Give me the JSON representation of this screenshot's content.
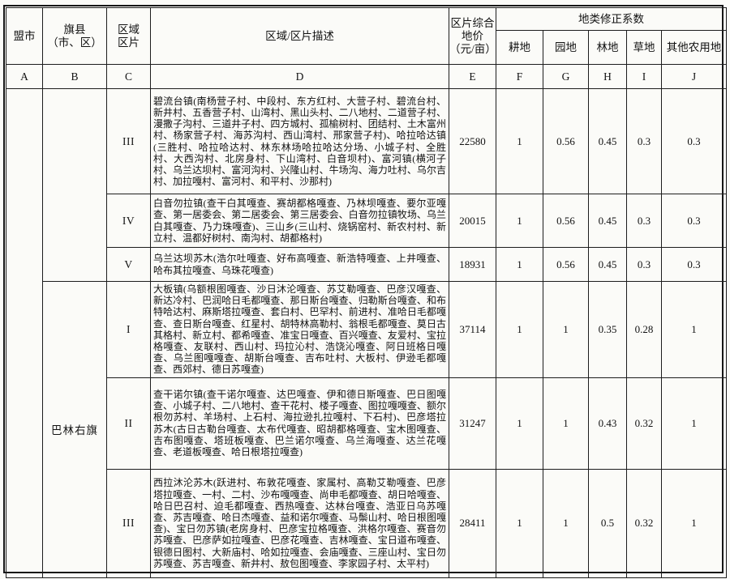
{
  "header": {
    "league": "盟市",
    "banner": [
      "旗县",
      "（市、区）"
    ],
    "zone": [
      "区域",
      "区片"
    ],
    "desc": "区域/区片描述",
    "price": [
      "区片综合",
      "地价",
      "（元/亩）"
    ],
    "coef_group": "地类修正系数",
    "coef_farmland": "耕地",
    "coef_garden": "园地",
    "coef_forest": "林地",
    "coef_grass": "草地",
    "coef_other": "其他农用地",
    "letters": {
      "a": "A",
      "b": "B",
      "c": "C",
      "d": "D",
      "e": "E",
      "f": "F",
      "g": "G",
      "h": "H",
      "i": "I",
      "j": "J"
    }
  },
  "body": {
    "league": "",
    "banner_group1": "",
    "banner_group2": "巴林右旗",
    "rows": [
      {
        "zone": "III",
        "desc": "碧流台镇(南杨营子村、中段村、东方红村、大营子村、碧流台村、新井村、五香营子村、山湾村、黑山头村、二八地村、二道营子村、漫撒子沟村、三道井子村、四方城村、孤榆树村、团结村、土木富州村、杨家营子村、海苏沟村、西山湾村、邢家营子村)、哈拉哈达镇(三胜村、哈拉哈达村、林东林场哈拉哈达分场、小城子村、全胜村、大西沟村、北房身村、下山湾村、白音坝村)、富河镇(横河子村、乌兰达坝村、富河沟村、兴隆山村、牛场沟、海力吐村、乌尔吉村、加拉嘎村、富河村、和平村、沙那村)",
        "price": "22580",
        "f": "1",
        "g": "0.56",
        "h": "0.45",
        "i": "0.3",
        "j": "0.3"
      },
      {
        "zone": "IV",
        "desc": "白音勿拉镇(查干白其嘎查、赛胡都格嘎查、乃林坝嘎查、要尔亚嘎查、第一居委会、第二居委会、第三居委会、白音勿拉镇牧场、乌兰白其嘎查、乃力珠嘎查)、三山乡(三山村、烧锅窑村、新农村村、新立村、温都好树村、南沟村、胡都格村)",
        "price": "20015",
        "f": "1",
        "g": "0.56",
        "h": "0.45",
        "i": "0.3",
        "j": "0.3"
      },
      {
        "zone": "V",
        "desc": "乌兰达坝苏木(浩尔吐嘎查、好布高嘎查、新浩特嘎查、上井嘎查、哈布其拉嘎查、乌珠花嘎查)",
        "price": "18931",
        "f": "1",
        "g": "0.56",
        "h": "0.45",
        "i": "0.3",
        "j": "0.3"
      },
      {
        "zone": "I",
        "desc": "大板镇(乌额根图嘎查、沙日沐沦嘎查、苏艾勒嘎查、巴彦汉嘎查、新达冷村、巴润哈日毛都嘎查、那日斯台嘎查、归勒斯台嘎查、和布特哈达村、麻斯塔拉嘎查、套白村、巴罕村、前进村、准哈日毛都嘎查、查日斯台嘎查、红星村、胡特林高勒村、翁根毛都嘎查、莫日古其格村、新立村、都希嘎查、准宝日嘎查、百兴嘎查、友爱村、宝拉格嘎查、友联村、西山村、玛拉沁村、浩饶沁嘎查、阿日班格日嘎查、乌兰图嘎嘎查、胡斯台嘎查、吉布吐村、大板村、伊逊毛都嘎查、西郊村、德日苏嘎查)",
        "price": "37114",
        "f": "1",
        "g": "1",
        "h": "0.35",
        "i": "0.28",
        "j": "1"
      },
      {
        "zone": "II",
        "desc": "查干诺尔镇(查干诺尔嘎查、达巴嘎查、伊和德日斯嘎查、巴日图嘎查、小城子村、二八地村、查干花村、楼子嘎查、图拉嘎嘎查、额尔根勿苏村、羊场村、上石村、海拉逊扎拉嘎村、下石村)、巴彦塔拉苏木(古日古勒台嘎查、太布代嘎查、昭胡都格嘎查、宝木图嘎查、吉布图嘎查、塔班板嘎查、巴兰诺尔嘎查、乌兰海嘎查、达兰花嘎查、老道板嘎查、哈日根塔拉嘎查)",
        "price": "31247",
        "f": "1",
        "g": "1",
        "h": "0.43",
        "i": "0.32",
        "j": "1"
      },
      {
        "zone": "III",
        "desc": "西拉沐沦苏木(跃进村、布敦花嘎查、家属村、高勒艾勒嘎查、巴彦塔拉嘎查、一村、二村、沙布嘎嘎查、尚申毛都嘎查、胡日哈嘎查、哈日巴召村、迫毛都嘎查、西热嘎查、达林台嘎查、浩亚日乌苏嘎查、苏吉嘎查、哈日杰嘎查、益和诺尔嘎查、马鬃山村、哈日根图嘎查)、宝日勿苏镇(老房身村、巴彦宝拉格嘎查、洪格尔嘎查、赛音勿苏嘎查、巴彦萨如拉嘎查、巴彦花嘎查、吉林嘎查、宝日道布嘎查、银德日图村、大新庙村、哈如拉嘎查、会庙嘎查、三座山村、宝日勿苏嘎查、苏吉嘎查、新井村、敖包图嘎查、李家园子村、太平村)",
        "price": "28411",
        "f": "1",
        "g": "1",
        "h": "0.5",
        "i": "0.32",
        "j": "1"
      }
    ]
  },
  "colors": {
    "border": "#161616",
    "paper": "#fbfbf8",
    "text": "#121212"
  }
}
